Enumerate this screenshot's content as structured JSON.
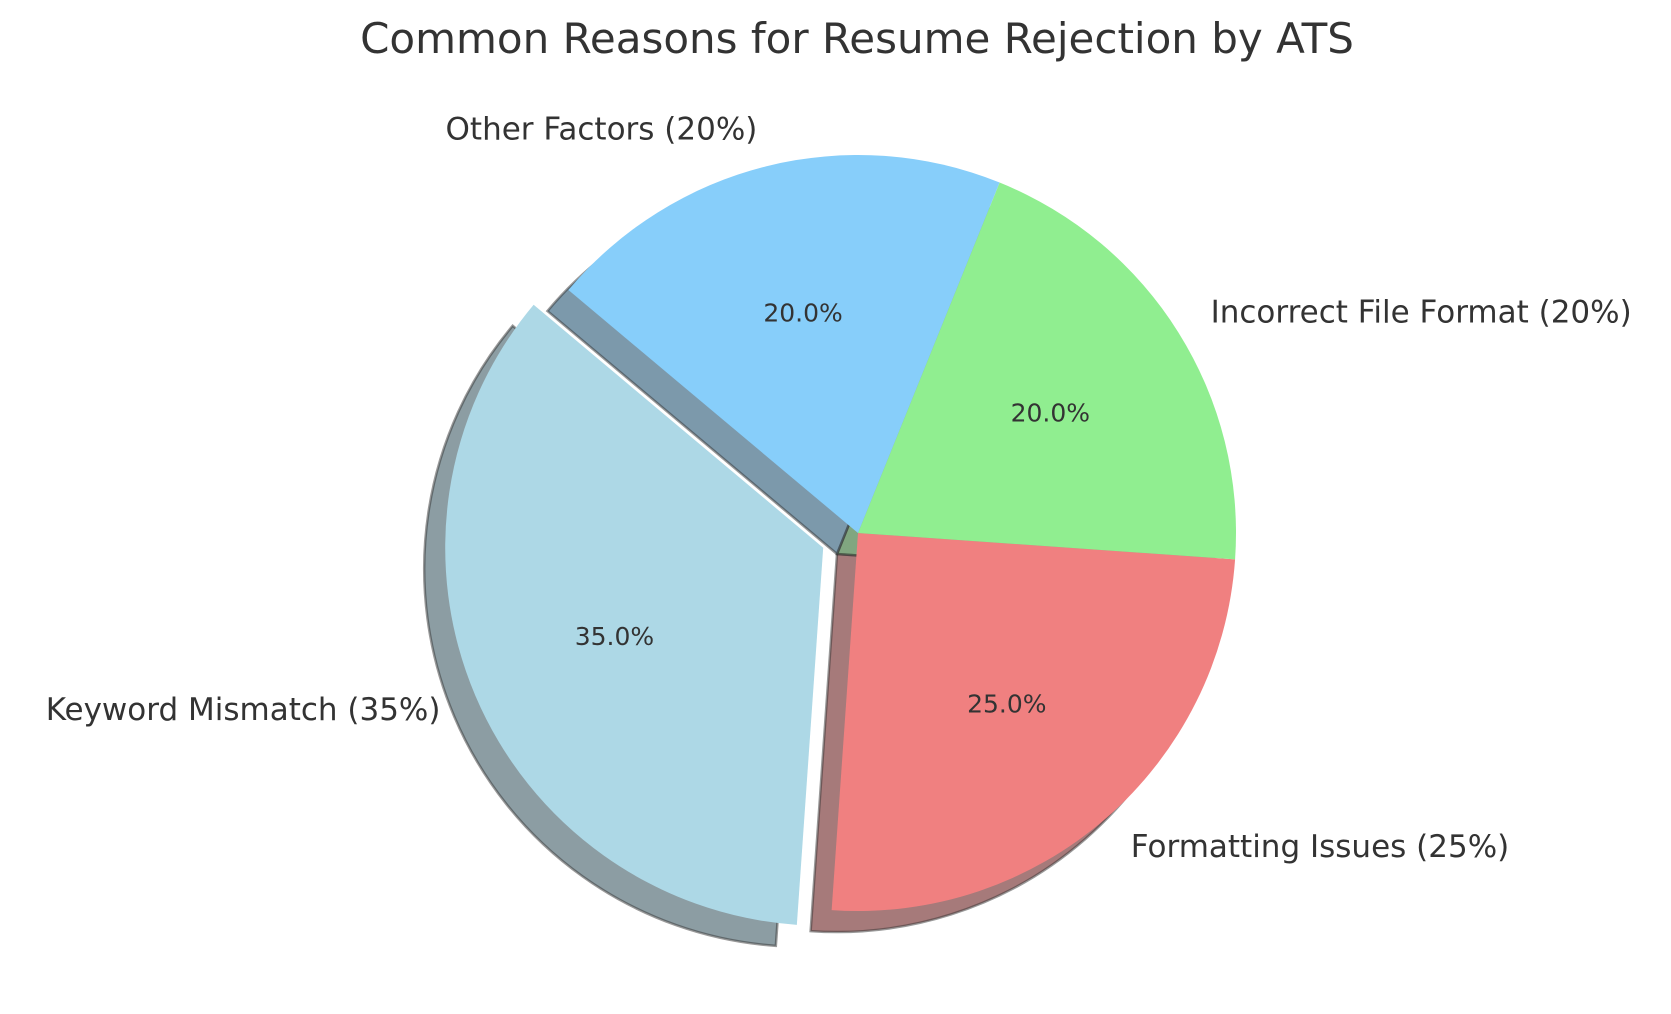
{
  "chart_data": {
    "type": "pie",
    "title": "Common Reasons for Resume Rejection by ATS",
    "slices": [
      {
        "name": "Keyword Mismatch",
        "value": 35,
        "label": "Keyword Mismatch (35%)",
        "pct_text": "35.0%",
        "color": "#add8e6",
        "exploded": true
      },
      {
        "name": "Formatting Issues",
        "value": 25,
        "label": "Formatting Issues (25%)",
        "pct_text": "25.0%",
        "color": "#f08080",
        "exploded": false
      },
      {
        "name": "Incorrect File Format",
        "value": 20,
        "label": "Incorrect File Format (20%)",
        "pct_text": "20.0%",
        "color": "#90ee90",
        "exploded": false
      },
      {
        "name": "Other Factors",
        "value": 20,
        "label": "Other Factors (20%)",
        "pct_text": "20.0%",
        "color": "#87cefa",
        "exploded": false
      }
    ],
    "start_angle_deg": 140,
    "direction": "counterclockwise",
    "shadow": true,
    "legend": false
  }
}
